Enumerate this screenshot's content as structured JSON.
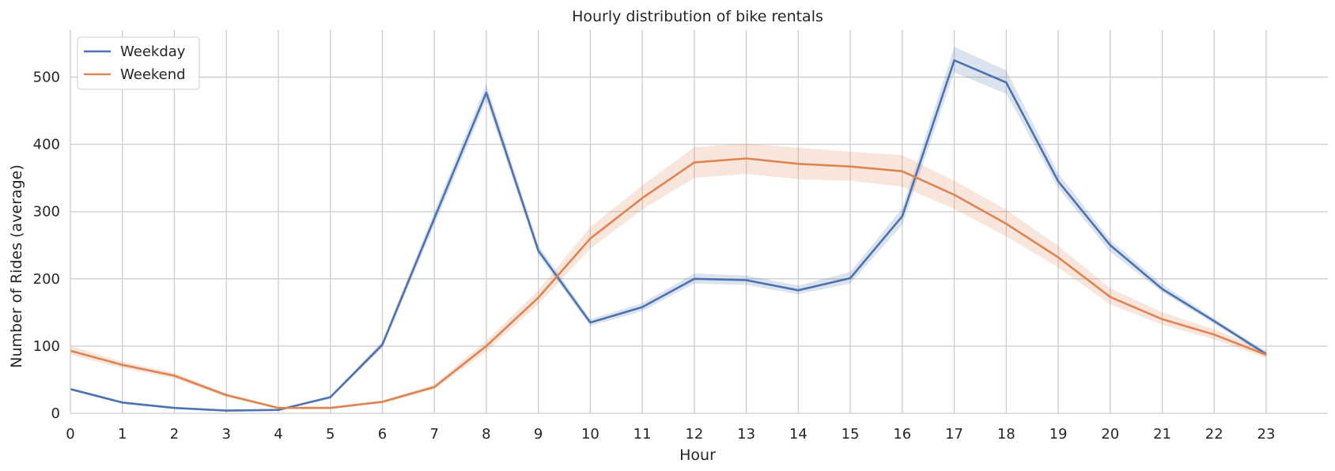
{
  "chart_data": {
    "type": "line",
    "title": "Hourly distribution of bike rentals",
    "xlabel": "Hour",
    "ylabel": "Number of Rides (average)",
    "x": [
      0,
      1,
      2,
      3,
      4,
      5,
      6,
      7,
      8,
      9,
      10,
      11,
      12,
      13,
      14,
      15,
      16,
      17,
      18,
      19,
      20,
      21,
      22,
      23
    ],
    "xlim": [
      0,
      23
    ],
    "ylim": [
      0,
      570
    ],
    "yticks": [
      0,
      100,
      200,
      300,
      400,
      500
    ],
    "grid": true,
    "legend_position": "top-left",
    "series": [
      {
        "name": "Weekday",
        "color": "#4c72b0",
        "values": [
          36,
          16,
          8,
          4,
          5,
          24,
          102,
          290,
          477,
          242,
          135,
          158,
          200,
          198,
          183,
          201,
          293,
          525,
          492,
          345,
          250,
          185,
          137,
          88
        ],
        "ci_low": [
          34,
          15,
          7,
          4,
          4,
          22,
          97,
          280,
          465,
          235,
          130,
          152,
          193,
          191,
          177,
          193,
          280,
          507,
          475,
          335,
          240,
          180,
          133,
          85
        ],
        "ci_high": [
          38,
          18,
          9,
          5,
          6,
          26,
          107,
          300,
          490,
          250,
          140,
          164,
          208,
          205,
          190,
          210,
          305,
          545,
          510,
          357,
          258,
          192,
          141,
          92
        ]
      },
      {
        "name": "Weekend",
        "color": "#dd8452",
        "values": [
          93,
          72,
          56,
          27,
          8,
          8,
          17,
          39,
          100,
          172,
          260,
          320,
          373,
          379,
          371,
          367,
          360,
          325,
          282,
          232,
          173,
          140,
          117,
          87
        ],
        "ci_low": [
          87,
          67,
          52,
          24,
          7,
          7,
          15,
          36,
          92,
          162,
          245,
          303,
          350,
          356,
          348,
          346,
          337,
          304,
          263,
          217,
          162,
          132,
          110,
          82
        ],
        "ci_high": [
          100,
          77,
          60,
          30,
          10,
          10,
          19,
          43,
          108,
          183,
          277,
          339,
          396,
          401,
          395,
          389,
          384,
          346,
          303,
          249,
          186,
          150,
          125,
          93
        ]
      }
    ]
  }
}
